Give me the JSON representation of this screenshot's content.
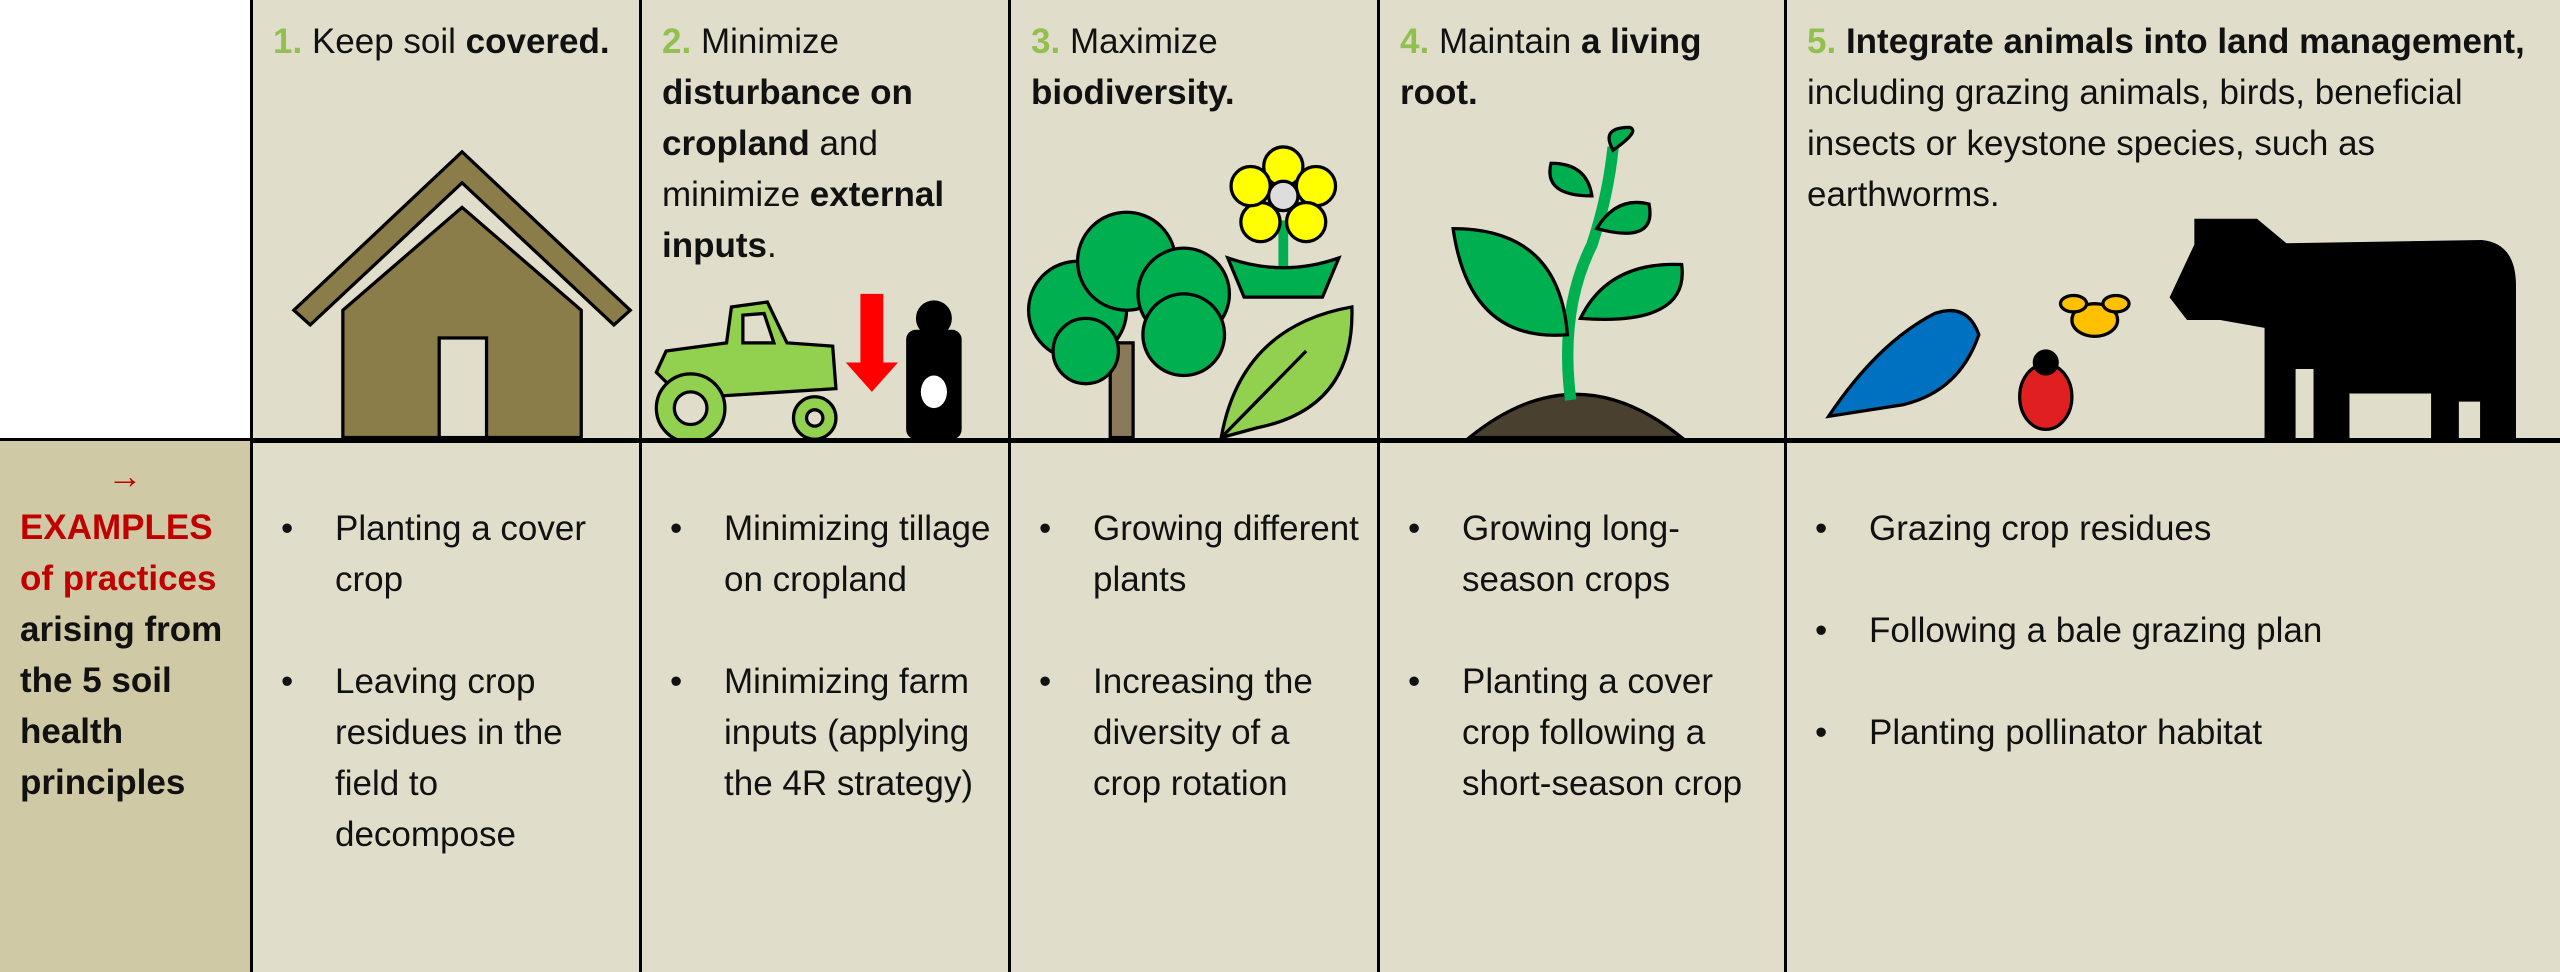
{
  "side_label": {
    "arrow": "→",
    "highlight": "EXAMPLES of practices",
    "text": "arising from the 5 soil health principles"
  },
  "principles": [
    {
      "number": "1.",
      "heading": [
        {
          "text": "Keep soil ",
          "bold": false
        },
        {
          "text": "covered.",
          "bold": true
        }
      ],
      "practices": [
        "Planting a cover crop",
        "Leaving crop residues in the field to decompose"
      ]
    },
    {
      "number": "2.",
      "heading": [
        {
          "text": "Minimize ",
          "bold": false
        },
        {
          "text": "disturbance on cropland",
          "bold": true
        },
        {
          "text": " and minimize ",
          "bold": false
        },
        {
          "text": "external inputs",
          "bold": true
        },
        {
          "text": ".",
          "bold": false
        }
      ],
      "practices": [
        "Minimizing tillage on cropland",
        "Minimizing farm inputs (applying the 4R strategy)"
      ]
    },
    {
      "number": "3.",
      "heading": [
        {
          "text": "Maximize ",
          "bold": false
        },
        {
          "text": "biodiversity.",
          "bold": true
        }
      ],
      "practices": [
        "Growing different plants",
        "Increasing the diversity of a crop rotation"
      ]
    },
    {
      "number": "4.",
      "heading": [
        {
          "text": "Maintain ",
          "bold": false
        },
        {
          "text": "a living root.",
          "bold": true
        }
      ],
      "practices": [
        "Growing long-season crops",
        "Planting a cover crop following a short-season crop"
      ]
    },
    {
      "number": "5.",
      "heading": [
        {
          "text": "Integrate animals into land management,",
          "bold": true
        },
        {
          "text": " including grazing animals, birds, beneficial insects or keystone species, such as earthworms.",
          "bold": false
        }
      ],
      "practices": [
        "Grazing crop residues",
        "Following a bale grazing plan",
        "Planting pollinator habitat"
      ]
    }
  ]
}
